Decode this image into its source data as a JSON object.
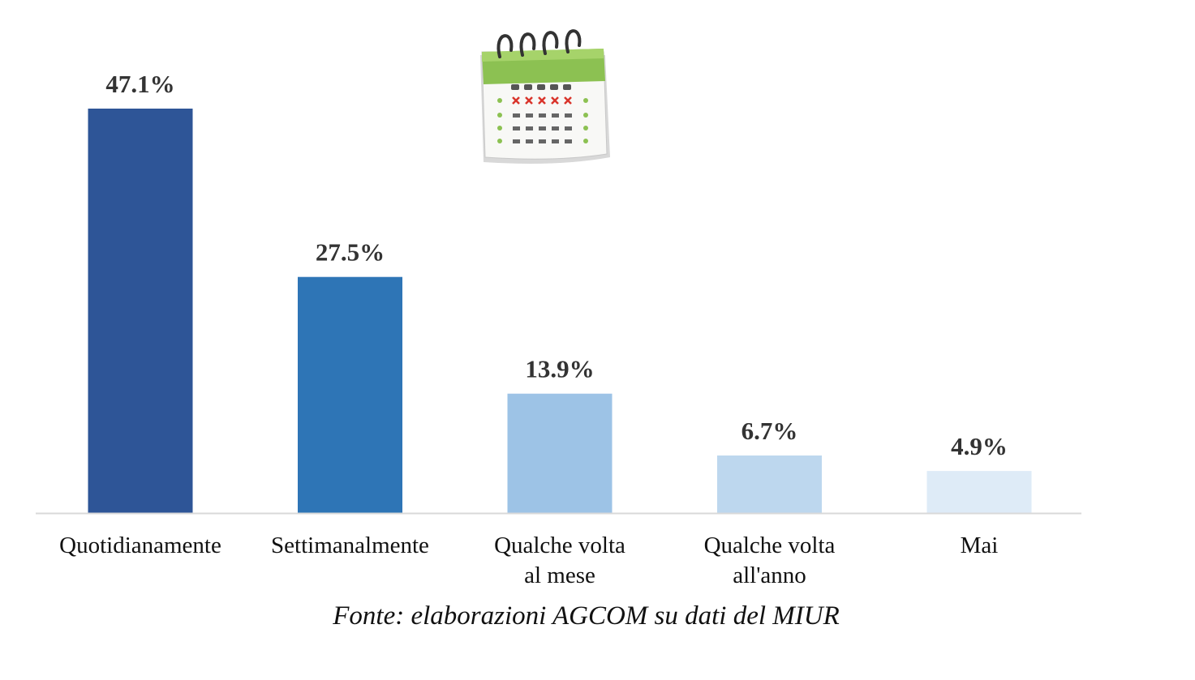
{
  "chart_data": {
    "type": "bar",
    "categories": [
      [
        "Quotidianamente"
      ],
      [
        "Settimanalmente"
      ],
      [
        "Qualche volta",
        "al mese"
      ],
      [
        "Qualche volta",
        "all'anno"
      ],
      [
        "Mai"
      ]
    ],
    "values": [
      47.1,
      27.5,
      13.9,
      6.7,
      4.9
    ],
    "value_labels": [
      "47.1%",
      "27.5%",
      "13.9%",
      "6.7%",
      "4.9%"
    ],
    "colors": [
      "#2E5597",
      "#2E75B6",
      "#9DC3E6",
      "#BDD7EE",
      "#DEEBF7"
    ],
    "ylim": [
      0,
      47.1
    ],
    "grid": false,
    "legend": "none"
  },
  "source": "Fonte: elaborazioni AGCOM su dati del MIUR",
  "icon": "calendar-icon"
}
